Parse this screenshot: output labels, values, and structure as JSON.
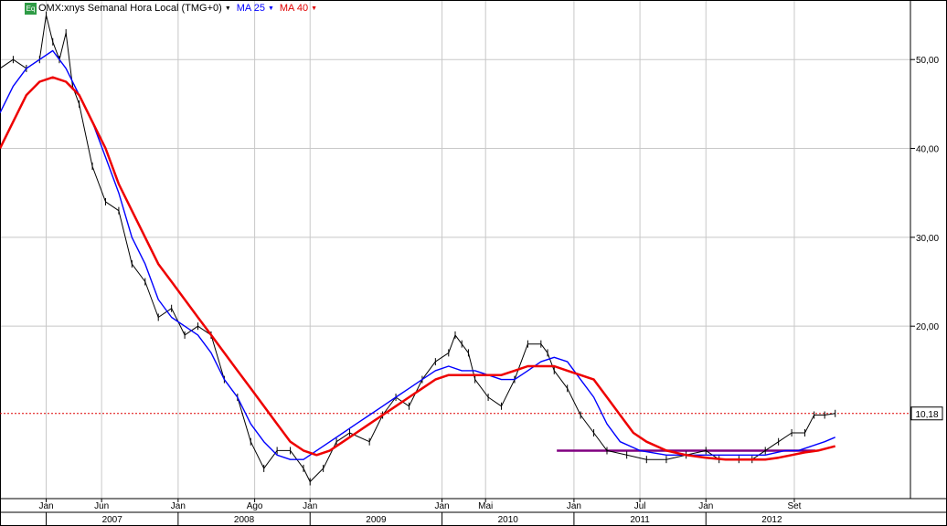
{
  "legend": {
    "badge": "Eq",
    "symbol": "OMX:xnys Semanal Hora Local (TMG+0)",
    "ma25_label": "MA 25",
    "ma40_label": "MA 40"
  },
  "colors": {
    "price": "#000000",
    "ma25": "#0000ff",
    "ma40": "#ee0000",
    "last_price_line": "#dd0000",
    "support_line": "#800080",
    "grid": "#c8c8c8"
  },
  "chart_data": {
    "type": "line",
    "title": "OMX:xnys Semanal Hora Local (TMG+0)",
    "x_axis": {
      "month_ticks": [
        {
          "label": "Jan",
          "t": 2007.0
        },
        {
          "label": "Jun",
          "t": 2007.42
        },
        {
          "label": "Jan",
          "t": 2008.0
        },
        {
          "label": "Ago",
          "t": 2008.58
        },
        {
          "label": "Jan",
          "t": 2009.0
        },
        {
          "label": "Jan",
          "t": 2010.0
        },
        {
          "label": "Mai",
          "t": 2010.33
        },
        {
          "label": "Jan",
          "t": 2011.0
        },
        {
          "label": "Jul",
          "t": 2011.5
        },
        {
          "label": "Jan",
          "t": 2012.0
        },
        {
          "label": "Set",
          "t": 2012.67
        }
      ],
      "year_labels": [
        "2007",
        "2008",
        "2009",
        "2010",
        "2011",
        "2012"
      ],
      "range": [
        2006.65,
        2013.55
      ]
    },
    "y_axis": {
      "ticks": [
        {
          "label": "20,00",
          "v": 20
        },
        {
          "label": "30,00",
          "v": 30
        },
        {
          "label": "40,00",
          "v": 40
        },
        {
          "label": "50,00",
          "v": 50
        }
      ],
      "range": [
        0.6,
        56.7
      ],
      "grid": true
    },
    "last_price": {
      "label": "10,18",
      "value": 10.18
    },
    "support_level": {
      "value": 6.0,
      "from": 2010.87,
      "to": 2012.83
    },
    "series": [
      {
        "name": "OMX:xnys",
        "style": "price",
        "points": [
          [
            2006.65,
            49
          ],
          [
            2006.75,
            50
          ],
          [
            2006.85,
            49
          ],
          [
            2006.95,
            50
          ],
          [
            2007.0,
            55
          ],
          [
            2007.05,
            52
          ],
          [
            2007.1,
            50
          ],
          [
            2007.15,
            53
          ],
          [
            2007.2,
            47
          ],
          [
            2007.25,
            45
          ],
          [
            2007.35,
            38
          ],
          [
            2007.45,
            34
          ],
          [
            2007.55,
            33
          ],
          [
            2007.65,
            27
          ],
          [
            2007.75,
            25
          ],
          [
            2007.85,
            21
          ],
          [
            2007.95,
            22
          ],
          [
            2008.05,
            19
          ],
          [
            2008.15,
            20
          ],
          [
            2008.25,
            19
          ],
          [
            2008.35,
            14
          ],
          [
            2008.45,
            12
          ],
          [
            2008.55,
            7
          ],
          [
            2008.65,
            4
          ],
          [
            2008.75,
            6
          ],
          [
            2008.85,
            6
          ],
          [
            2008.95,
            4
          ],
          [
            2009.0,
            2.5
          ],
          [
            2009.1,
            4
          ],
          [
            2009.2,
            7
          ],
          [
            2009.3,
            8
          ],
          [
            2009.45,
            7
          ],
          [
            2009.55,
            10
          ],
          [
            2009.65,
            12
          ],
          [
            2009.75,
            11
          ],
          [
            2009.85,
            14
          ],
          [
            2009.95,
            16
          ],
          [
            2010.05,
            17
          ],
          [
            2010.1,
            19
          ],
          [
            2010.15,
            18
          ],
          [
            2010.2,
            17
          ],
          [
            2010.25,
            14
          ],
          [
            2010.35,
            12
          ],
          [
            2010.45,
            11
          ],
          [
            2010.55,
            14
          ],
          [
            2010.65,
            18
          ],
          [
            2010.75,
            18
          ],
          [
            2010.8,
            17
          ],
          [
            2010.85,
            15
          ],
          [
            2010.95,
            13
          ],
          [
            2011.05,
            10
          ],
          [
            2011.15,
            8
          ],
          [
            2011.25,
            6
          ],
          [
            2011.4,
            5.5
          ],
          [
            2011.55,
            5
          ],
          [
            2011.7,
            5
          ],
          [
            2011.85,
            5.5
          ],
          [
            2012.0,
            6
          ],
          [
            2012.1,
            5
          ],
          [
            2012.25,
            5
          ],
          [
            2012.35,
            5
          ],
          [
            2012.45,
            6
          ],
          [
            2012.55,
            7
          ],
          [
            2012.65,
            8
          ],
          [
            2012.75,
            8
          ],
          [
            2012.82,
            10
          ],
          [
            2012.9,
            10
          ],
          [
            2012.98,
            10.18
          ]
        ]
      },
      {
        "name": "MA 25",
        "style": "ma25",
        "points": [
          [
            2006.65,
            44
          ],
          [
            2006.75,
            47
          ],
          [
            2006.85,
            49
          ],
          [
            2006.95,
            50
          ],
          [
            2007.05,
            51
          ],
          [
            2007.15,
            49
          ],
          [
            2007.25,
            46
          ],
          [
            2007.35,
            43
          ],
          [
            2007.45,
            39
          ],
          [
            2007.55,
            35
          ],
          [
            2007.65,
            30
          ],
          [
            2007.75,
            27
          ],
          [
            2007.85,
            23
          ],
          [
            2007.95,
            21
          ],
          [
            2008.05,
            20
          ],
          [
            2008.15,
            19
          ],
          [
            2008.25,
            17
          ],
          [
            2008.35,
            14
          ],
          [
            2008.45,
            12
          ],
          [
            2008.55,
            9
          ],
          [
            2008.65,
            7
          ],
          [
            2008.75,
            5.5
          ],
          [
            2008.85,
            5
          ],
          [
            2008.95,
            5
          ],
          [
            2009.05,
            6
          ],
          [
            2009.15,
            7
          ],
          [
            2009.25,
            8
          ],
          [
            2009.35,
            9
          ],
          [
            2009.45,
            10
          ],
          [
            2009.55,
            11
          ],
          [
            2009.65,
            12
          ],
          [
            2009.75,
            13
          ],
          [
            2009.85,
            14
          ],
          [
            2009.95,
            15
          ],
          [
            2010.05,
            15.5
          ],
          [
            2010.15,
            15
          ],
          [
            2010.25,
            15
          ],
          [
            2010.35,
            14.5
          ],
          [
            2010.45,
            14
          ],
          [
            2010.55,
            14
          ],
          [
            2010.65,
            15
          ],
          [
            2010.75,
            16
          ],
          [
            2010.85,
            16.5
          ],
          [
            2010.95,
            16
          ],
          [
            2011.05,
            14
          ],
          [
            2011.15,
            12
          ],
          [
            2011.25,
            9
          ],
          [
            2011.35,
            7
          ],
          [
            2011.5,
            6
          ],
          [
            2011.7,
            5.5
          ],
          [
            2011.85,
            5.5
          ],
          [
            2012.0,
            5.5
          ],
          [
            2012.15,
            5.5
          ],
          [
            2012.3,
            5.5
          ],
          [
            2012.45,
            5.5
          ],
          [
            2012.6,
            6
          ],
          [
            2012.7,
            6
          ],
          [
            2012.8,
            6.5
          ],
          [
            2012.9,
            7
          ],
          [
            2012.98,
            7.5
          ]
        ]
      },
      {
        "name": "MA 40",
        "style": "ma40",
        "points": [
          [
            2006.65,
            40
          ],
          [
            2006.75,
            43
          ],
          [
            2006.85,
            46
          ],
          [
            2006.95,
            47.5
          ],
          [
            2007.05,
            48
          ],
          [
            2007.15,
            47.5
          ],
          [
            2007.25,
            46
          ],
          [
            2007.35,
            43
          ],
          [
            2007.45,
            40
          ],
          [
            2007.55,
            36
          ],
          [
            2007.65,
            33
          ],
          [
            2007.75,
            30
          ],
          [
            2007.85,
            27
          ],
          [
            2007.95,
            25
          ],
          [
            2008.05,
            23
          ],
          [
            2008.15,
            21
          ],
          [
            2008.25,
            19
          ],
          [
            2008.35,
            17
          ],
          [
            2008.45,
            15
          ],
          [
            2008.55,
            13
          ],
          [
            2008.65,
            11
          ],
          [
            2008.75,
            9
          ],
          [
            2008.85,
            7
          ],
          [
            2008.95,
            6
          ],
          [
            2009.05,
            5.5
          ],
          [
            2009.15,
            6
          ],
          [
            2009.25,
            7
          ],
          [
            2009.35,
            8
          ],
          [
            2009.45,
            9
          ],
          [
            2009.55,
            10
          ],
          [
            2009.65,
            11
          ],
          [
            2009.75,
            12
          ],
          [
            2009.85,
            13
          ],
          [
            2009.95,
            14
          ],
          [
            2010.05,
            14.5
          ],
          [
            2010.15,
            14.5
          ],
          [
            2010.25,
            14.5
          ],
          [
            2010.35,
            14.5
          ],
          [
            2010.45,
            14.5
          ],
          [
            2010.55,
            15
          ],
          [
            2010.65,
            15.5
          ],
          [
            2010.75,
            15.5
          ],
          [
            2010.85,
            15.5
          ],
          [
            2010.95,
            15
          ],
          [
            2011.05,
            14.5
          ],
          [
            2011.15,
            14
          ],
          [
            2011.25,
            12
          ],
          [
            2011.35,
            10
          ],
          [
            2011.45,
            8
          ],
          [
            2011.55,
            7
          ],
          [
            2011.7,
            6
          ],
          [
            2011.85,
            5.5
          ],
          [
            2012.0,
            5.2
          ],
          [
            2012.15,
            5
          ],
          [
            2012.3,
            5
          ],
          [
            2012.45,
            5
          ],
          [
            2012.55,
            5.2
          ],
          [
            2012.65,
            5.5
          ],
          [
            2012.75,
            5.8
          ],
          [
            2012.85,
            6
          ],
          [
            2012.98,
            6.5
          ]
        ]
      }
    ]
  }
}
